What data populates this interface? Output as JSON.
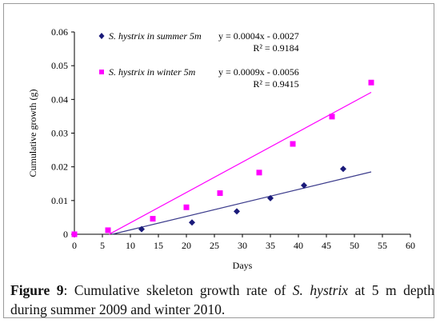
{
  "chart_data": {
    "type": "scatter",
    "xlabel": "Days",
    "ylabel": "Cumulative growth  (g)",
    "xlim": [
      0,
      60
    ],
    "ylim": [
      0,
      0.06
    ],
    "xticks": [
      0,
      5,
      10,
      15,
      20,
      25,
      30,
      35,
      40,
      45,
      50,
      55,
      60
    ],
    "yticks": [
      0,
      0.01,
      0.02,
      0.03,
      0.04,
      0.05,
      0.06
    ],
    "xtick_labels": [
      "0",
      "5",
      "10",
      "15",
      "20",
      "25",
      "30",
      "35",
      "40",
      "45",
      "50",
      "55",
      "60"
    ],
    "ytick_labels": [
      "0",
      "0.01",
      "0.02",
      "0.03",
      "0.04",
      "0.05",
      "0.06"
    ],
    "grid": false,
    "legend_position": "top-left",
    "series": [
      {
        "name": "S. hystrix in summer  5m",
        "marker": "diamond",
        "color": "#1a1a7a",
        "trend_color": "#3c3c8c",
        "equation": "y = 0.0004x - 0.0027",
        "r2": "R² = 0.9184",
        "trend_range": [
          6.75,
          53
        ],
        "points": [
          [
            0,
            0
          ],
          [
            12,
            0.0015
          ],
          [
            21,
            0.0035
          ],
          [
            29,
            0.0068
          ],
          [
            35,
            0.0107
          ],
          [
            41,
            0.0145
          ],
          [
            48,
            0.0194
          ]
        ]
      },
      {
        "name": "S. hystrix in winter 5m",
        "marker": "square",
        "color": "#ff00ff",
        "trend_color": "#ff00ff",
        "equation": "y = 0.0009x - 0.0056",
        "r2": "R² = 0.9415",
        "trend_range": [
          6.2,
          53
        ],
        "points": [
          [
            0,
            0
          ],
          [
            6,
            0.0012
          ],
          [
            14,
            0.0046
          ],
          [
            20,
            0.008
          ],
          [
            26,
            0.0122
          ],
          [
            33,
            0.0183
          ],
          [
            39,
            0.0268
          ],
          [
            46,
            0.0349
          ],
          [
            53,
            0.045
          ]
        ]
      }
    ]
  },
  "caption": {
    "label": "Figure 9",
    "text_before_species": ": Cumulative skeleton growth rate of ",
    "species": "S. hystrix",
    "text_after_species": " at 5 m depth during summer 2009 and winter 2010."
  }
}
